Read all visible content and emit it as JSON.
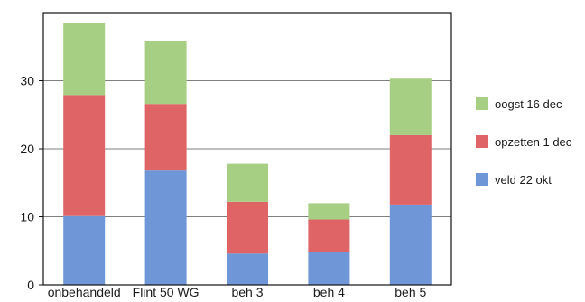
{
  "chart_data": {
    "type": "bar",
    "stacked": true,
    "title": "",
    "xlabel": "",
    "ylabel": "",
    "categories": [
      "onbehandeld",
      "Flint 50 WG",
      "beh 3",
      "beh 4",
      "beh 5"
    ],
    "series": [
      {
        "name": "veld 22 okt",
        "color": "#6f96d6",
        "values": [
          10.1,
          16.8,
          4.6,
          4.9,
          11.8
        ]
      },
      {
        "name": "opzetten 1 dec",
        "color": "#de6466",
        "values": [
          17.8,
          9.8,
          7.6,
          4.7,
          10.2
        ]
      },
      {
        "name": "oogst 16 dec",
        "color": "#a6cf84",
        "values": [
          10.6,
          9.2,
          5.6,
          2.4,
          8.3
        ]
      }
    ],
    "ylim": [
      0,
      40
    ],
    "yticks": [
      0,
      10,
      20,
      30
    ],
    "grid": true,
    "legend_position": "right",
    "legend_order": [
      "oogst 16 dec",
      "opzetten 1 dec",
      "veld 22 okt"
    ]
  }
}
